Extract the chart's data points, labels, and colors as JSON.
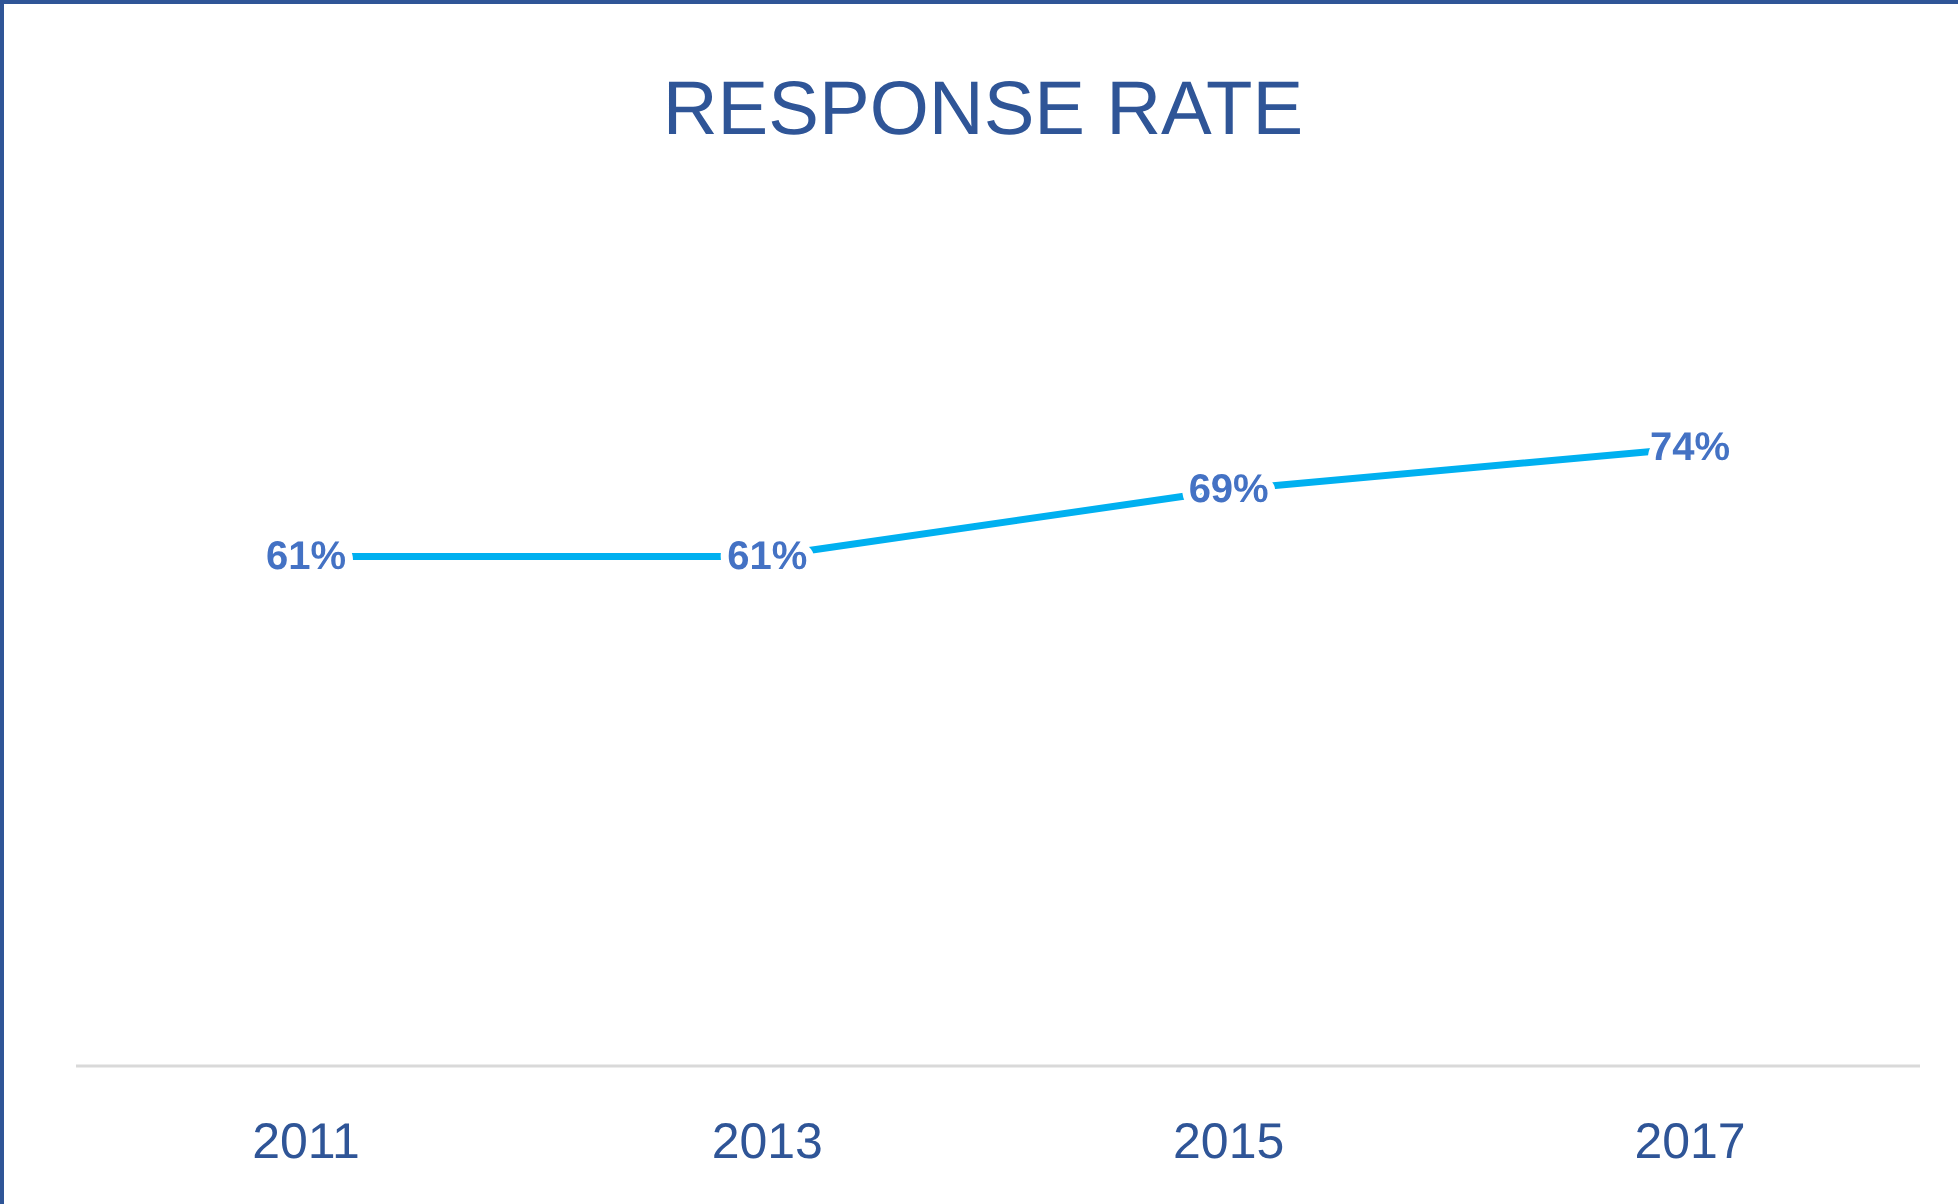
{
  "chart_data": {
    "type": "line",
    "title": "RESPONSE RATE",
    "categories": [
      "2011",
      "2013",
      "2015",
      "2017"
    ],
    "series": [
      {
        "color": "#00b0f0",
        "values": [
          61,
          61,
          69,
          74
        ],
        "value_labels": [
          "61%",
          "61%",
          "69%",
          "74%"
        ]
      }
    ],
    "grid": false,
    "legend": false
  }
}
